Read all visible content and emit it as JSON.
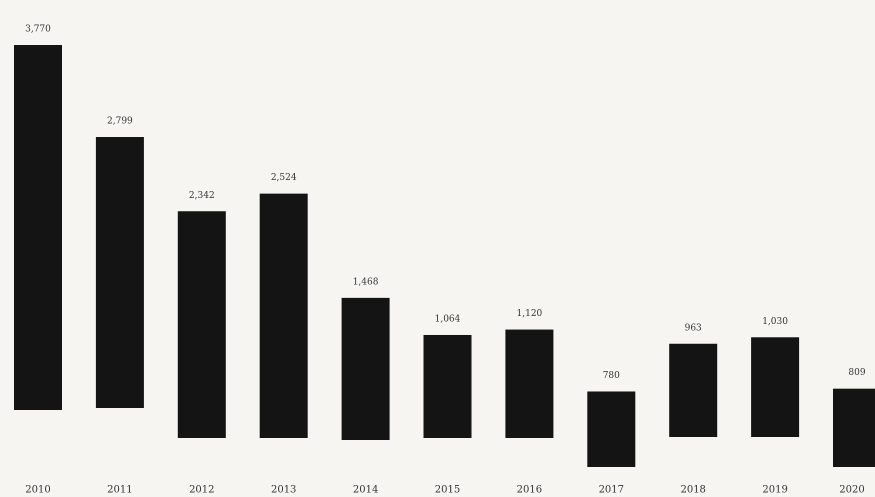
{
  "chart_data": {
    "type": "bar",
    "categories": [
      "2010",
      "2011",
      "2012",
      "2013",
      "2014",
      "2015",
      "2016",
      "2017",
      "2018",
      "2019",
      "2020"
    ],
    "values": [
      3770,
      2799,
      2342,
      2524,
      1468,
      1064,
      1120,
      780,
      963,
      1030,
      809
    ],
    "value_labels": [
      "3,770",
      "2,799",
      "2,342",
      "2,524",
      "1,468",
      "1,064",
      "1,120",
      "780",
      "963",
      "1,030",
      "809"
    ],
    "color": "#141414"
  }
}
